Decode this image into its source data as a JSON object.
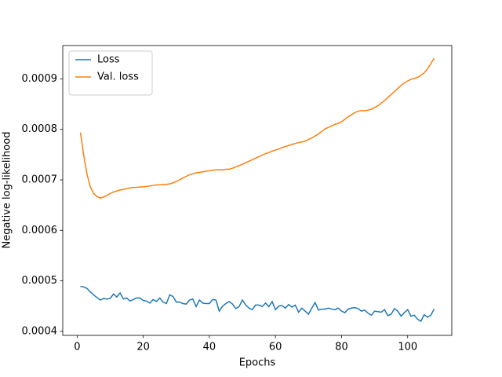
{
  "chart_data": {
    "type": "line",
    "xlabel": "Epochs",
    "ylabel": "Negative log-likelihood",
    "x": [
      1,
      2,
      3,
      4,
      5,
      6,
      7,
      8,
      9,
      10,
      11,
      12,
      13,
      14,
      15,
      16,
      17,
      18,
      19,
      20,
      21,
      22,
      23,
      24,
      25,
      26,
      27,
      28,
      29,
      30,
      31,
      32,
      33,
      34,
      35,
      36,
      37,
      38,
      39,
      40,
      41,
      42,
      43,
      44,
      45,
      46,
      47,
      48,
      49,
      50,
      51,
      52,
      53,
      54,
      55,
      56,
      57,
      58,
      59,
      60,
      61,
      62,
      63,
      64,
      65,
      66,
      67,
      68,
      69,
      70,
      71,
      72,
      73,
      74,
      75,
      76,
      77,
      78,
      79,
      80,
      81,
      82,
      83,
      84,
      85,
      86,
      87,
      88,
      89,
      90,
      91,
      92,
      93,
      94,
      95,
      96,
      97,
      98,
      99,
      100,
      101,
      102,
      103,
      104,
      105,
      106,
      107,
      108
    ],
    "series": [
      {
        "name": "Loss",
        "color": "#1f77b4",
        "values": [
          0.000489,
          0.000488,
          0.000485,
          0.000478,
          0.000472,
          0.000467,
          0.000462,
          0.000465,
          0.000464,
          0.000465,
          0.000474,
          0.000468,
          0.000476,
          0.000464,
          0.000466,
          0.00046,
          0.000463,
          0.000466,
          0.000466,
          0.000461,
          0.00046,
          0.000456,
          0.000463,
          0.000459,
          0.000466,
          0.000458,
          0.000455,
          0.000472,
          0.000469,
          0.000458,
          0.000458,
          0.000455,
          0.000454,
          0.000462,
          0.000464,
          0.000449,
          0.000462,
          0.000456,
          0.000455,
          0.000455,
          0.000463,
          0.000462,
          0.00044,
          0.00045,
          0.000455,
          0.000459,
          0.000454,
          0.000445,
          0.000449,
          0.000462,
          0.000452,
          0.000446,
          0.000443,
          0.000452,
          0.000452,
          0.000449,
          0.000456,
          0.000449,
          0.000459,
          0.000443,
          0.00045,
          0.000451,
          0.000446,
          0.000453,
          0.000448,
          0.000452,
          0.000438,
          0.000446,
          0.00044,
          0.000434,
          0.000446,
          0.000457,
          0.000442,
          0.000444,
          0.000444,
          0.000446,
          0.000444,
          0.000443,
          0.000446,
          0.00044,
          0.000437,
          0.000444,
          0.000446,
          0.000447,
          0.000445,
          0.00044,
          0.000442,
          0.000436,
          0.000432,
          0.00044,
          0.000439,
          0.000438,
          0.000443,
          0.000431,
          0.000434,
          0.000445,
          0.00044,
          0.00043,
          0.000437,
          0.000443,
          0.00043,
          0.000432,
          0.000424,
          0.00042,
          0.000433,
          0.000428,
          0.000432,
          0.000444
        ]
      },
      {
        "name": "Val. loss",
        "color": "#ff7f0e",
        "values": [
          0.000794,
          0.000748,
          0.000711,
          0.000686,
          0.000673,
          0.000667,
          0.000664,
          0.000666,
          0.000669,
          0.000673,
          0.000676,
          0.000678,
          0.00068,
          0.000681,
          0.000683,
          0.000684,
          0.000685,
          0.000685,
          0.000686,
          0.000686,
          0.000687,
          0.000688,
          0.000689,
          0.00069,
          0.00069,
          0.000691,
          0.000691,
          0.000692,
          0.000694,
          0.000697,
          0.0007,
          0.000704,
          0.000707,
          0.00071,
          0.000712,
          0.000714,
          0.000715,
          0.000716,
          0.000717,
          0.000718,
          0.000719,
          0.00072,
          0.00072,
          0.00072,
          0.000721,
          0.000721,
          0.000723,
          0.000726,
          0.000728,
          0.000731,
          0.000734,
          0.000737,
          0.00074,
          0.000743,
          0.000746,
          0.000749,
          0.000752,
          0.000754,
          0.000757,
          0.000759,
          0.000761,
          0.000764,
          0.000766,
          0.000768,
          0.00077,
          0.000772,
          0.000774,
          0.000775,
          0.000777,
          0.00078,
          0.000783,
          0.000787,
          0.000791,
          0.000796,
          0.000801,
          0.000804,
          0.000807,
          0.00081,
          0.000812,
          0.000815,
          0.00082,
          0.000825,
          0.000829,
          0.000833,
          0.000836,
          0.000837,
          0.000837,
          0.000838,
          0.00084,
          0.000843,
          0.000847,
          0.000852,
          0.000857,
          0.000863,
          0.000869,
          0.000875,
          0.000881,
          0.000887,
          0.000892,
          0.000896,
          0.000899,
          0.000901,
          0.000903,
          0.000907,
          0.000912,
          0.00092,
          0.00093,
          0.000941
        ]
      }
    ],
    "xlim": [
      -4.35,
      113.35
    ],
    "xticks": [
      0,
      20,
      40,
      60,
      80,
      100
    ],
    "ylim": [
      0.000392,
      0.000966
    ],
    "yticks": [
      0.0004,
      0.0005,
      0.0006,
      0.0007,
      0.0008,
      0.0009
    ],
    "legend": "upper left",
    "grid": false
  }
}
